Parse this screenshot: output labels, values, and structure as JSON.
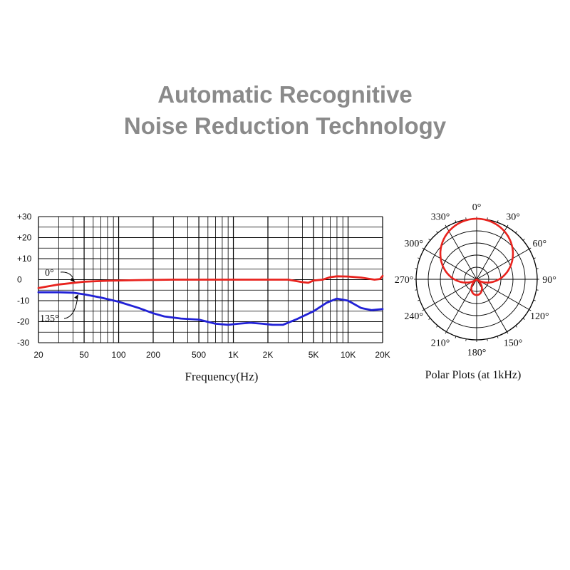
{
  "headline": {
    "line1": "Automatic Recognitive",
    "line2": "Noise Reduction Technology"
  },
  "colors": {
    "red": "#e8231e",
    "blue": "#2121d6",
    "grid": "#000000"
  },
  "chart_data": [
    {
      "type": "line",
      "xlabel": "Frequency(Hz)",
      "xscale": "log",
      "xlim": [
        20,
        20000
      ],
      "ylim": [
        -30,
        30
      ],
      "x_ticks": [
        {
          "value": 20,
          "label": "20"
        },
        {
          "value": 50,
          "label": "50"
        },
        {
          "value": 100,
          "label": "100"
        },
        {
          "value": 200,
          "label": "200"
        },
        {
          "value": 500,
          "label": "500"
        },
        {
          "value": 1000,
          "label": "1K"
        },
        {
          "value": 2000,
          "label": "2K"
        },
        {
          "value": 5000,
          "label": "5K"
        },
        {
          "value": 10000,
          "label": "10K"
        },
        {
          "value": 20000,
          "label": "20K"
        }
      ],
      "y_ticks": [
        {
          "value": 30,
          "label": "+30"
        },
        {
          "value": 20,
          "label": "+20"
        },
        {
          "value": 10,
          "label": "+10"
        },
        {
          "value": 0,
          "label": "0"
        },
        {
          "value": -10,
          "label": "-10"
        },
        {
          "value": -20,
          "label": "-20"
        },
        {
          "value": -30,
          "label": "-30"
        }
      ],
      "grid": true,
      "series": [
        {
          "name": "0°",
          "color": "#e8231e",
          "points": [
            [
              20,
              -4
            ],
            [
              30,
              -2.3
            ],
            [
              50,
              -1
            ],
            [
              80,
              -0.5
            ],
            [
              150,
              -0.2
            ],
            [
              300,
              0
            ],
            [
              1000,
              0
            ],
            [
              3000,
              0
            ],
            [
              4000,
              -1.2
            ],
            [
              4500,
              -1.5
            ],
            [
              5000,
              -0.4
            ],
            [
              6000,
              0
            ],
            [
              7000,
              1.2
            ],
            [
              8000,
              1.6
            ],
            [
              10000,
              1.5
            ],
            [
              13000,
              1
            ],
            [
              17000,
              0
            ],
            [
              19000,
              0.3
            ],
            [
              20000,
              1.8
            ]
          ]
        },
        {
          "name": "135°",
          "color": "#2121d6",
          "points": [
            [
              20,
              -6
            ],
            [
              30,
              -6
            ],
            [
              40,
              -6.2
            ],
            [
              50,
              -7
            ],
            [
              70,
              -8.5
            ],
            [
              100,
              -10.5
            ],
            [
              150,
              -13.5
            ],
            [
              200,
              -16
            ],
            [
              250,
              -17.5
            ],
            [
              350,
              -18.5
            ],
            [
              500,
              -19
            ],
            [
              700,
              -21
            ],
            [
              900,
              -21.5
            ],
            [
              1100,
              -21
            ],
            [
              1400,
              -20.5
            ],
            [
              1800,
              -21
            ],
            [
              2200,
              -21.5
            ],
            [
              2700,
              -21.5
            ],
            [
              3500,
              -19
            ],
            [
              5000,
              -15
            ],
            [
              6500,
              -11
            ],
            [
              8000,
              -9
            ],
            [
              10000,
              -10
            ],
            [
              13000,
              -13.5
            ],
            [
              16000,
              -14.5
            ],
            [
              20000,
              -14
            ]
          ]
        }
      ],
      "annotations": [
        {
          "label": "0°",
          "series": "0°",
          "x": 50
        },
        {
          "label": "135°",
          "series": "135°",
          "x": 50
        }
      ]
    },
    {
      "type": "polar",
      "caption": "Polar Plots (at 1kHz)",
      "frequency": "1kHz",
      "angle_labels": [
        {
          "angle": 0,
          "label": "0°"
        },
        {
          "angle": 30,
          "label": "30°"
        },
        {
          "angle": 60,
          "label": "60°"
        },
        {
          "angle": 90,
          "label": "90°"
        },
        {
          "angle": 120,
          "label": "120°"
        },
        {
          "angle": 150,
          "label": "150°"
        },
        {
          "angle": 180,
          "label": "180°"
        },
        {
          "angle": 210,
          "label": "210°"
        },
        {
          "angle": 240,
          "label": "240°"
        },
        {
          "angle": 270,
          "label": "270°"
        },
        {
          "angle": 300,
          "label": "300°"
        },
        {
          "angle": 330,
          "label": "330°"
        }
      ],
      "rings": 5,
      "pattern": "supercardioid",
      "pattern_color": "#e8231e",
      "pattern_a": 0.37
    }
  ]
}
